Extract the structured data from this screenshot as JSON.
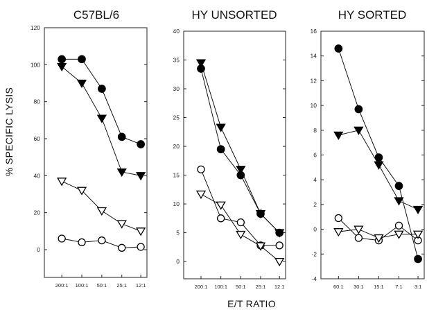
{
  "figure": {
    "ylabel": "% SPECIFIC LYSIS",
    "xlabel": "E/T RATIO"
  },
  "chart_data": [
    {
      "type": "line",
      "title": "C57BL/6",
      "categories": [
        "200:1",
        "100:1",
        "50:1",
        "25:1",
        "12:1"
      ],
      "yticks": [
        "0",
        "20",
        "40",
        "60",
        "80",
        "100",
        "120"
      ],
      "ylim": [
        -15,
        120
      ],
      "series": [
        {
          "marker": "filled-circle",
          "values": [
            103,
            103,
            87,
            61,
            57
          ]
        },
        {
          "marker": "filled-triangle-down",
          "values": [
            99,
            90,
            71,
            42,
            40
          ]
        },
        {
          "marker": "open-triangle-down",
          "values": [
            37,
            32,
            21,
            14,
            10
          ]
        },
        {
          "marker": "open-circle",
          "values": [
            6,
            4,
            5,
            1,
            1.5
          ]
        }
      ]
    },
    {
      "type": "line",
      "title": "HY UNSORTED",
      "categories": [
        "200:1",
        "100:1",
        "50:1",
        "25:1",
        "12:1"
      ],
      "yticks": [
        "0",
        "5",
        "10",
        "15",
        "20",
        "25",
        "30",
        "35",
        "40"
      ],
      "ylim": [
        -3,
        40
      ],
      "series": [
        {
          "marker": "filled-circle",
          "values": [
            33.5,
            19.5,
            15,
            8.3,
            5
          ]
        },
        {
          "marker": "filled-triangle-down",
          "values": [
            34.5,
            23.3,
            16,
            8.3,
            5
          ]
        },
        {
          "marker": "open-circle",
          "values": [
            16,
            7.5,
            6.8,
            2.8,
            2.8
          ]
        },
        {
          "marker": "open-triangle-down",
          "values": [
            11.7,
            9.8,
            4.7,
            2.7,
            0
          ]
        }
      ]
    },
    {
      "type": "line",
      "title": "HY SORTED",
      "categories": [
        "60:1",
        "30:1",
        "15:1",
        "7:1",
        "3:1"
      ],
      "yticks": [
        "-4",
        "-2",
        "0",
        "2",
        "4",
        "6",
        "8",
        "10",
        "12",
        "14",
        "16"
      ],
      "ylim": [
        -4,
        16
      ],
      "series": [
        {
          "marker": "filled-circle",
          "values": [
            14.6,
            9.7,
            5.8,
            3.5,
            -2.4
          ]
        },
        {
          "marker": "filled-triangle-down",
          "values": [
            7.6,
            8,
            5.2,
            2.3,
            1.6
          ]
        },
        {
          "marker": "open-circle",
          "values": [
            0.9,
            -0.7,
            -0.9,
            0.3,
            -0.9
          ]
        },
        {
          "marker": "open-triangle-down",
          "values": [
            -0.2,
            0,
            -0.7,
            -0.4,
            -0.4
          ]
        }
      ]
    }
  ]
}
